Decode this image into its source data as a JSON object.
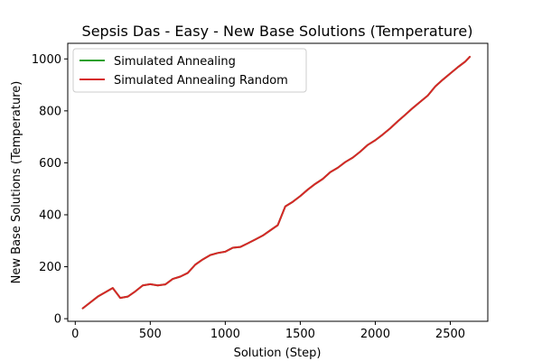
{
  "chart_data": {
    "type": "line",
    "title": "Sepsis Das - Easy - New Base Solutions (Temperature)",
    "xlabel": "Solution (Step)",
    "ylabel": "New Base Solutions (Temperature)",
    "xlim": [
      -50,
      2750
    ],
    "ylim": [
      -10,
      1060
    ],
    "xticks": [
      0,
      500,
      1000,
      1500,
      2000,
      2500
    ],
    "yticks": [
      0,
      200,
      400,
      600,
      800,
      1000
    ],
    "grid": false,
    "legend_position": "top-left",
    "series": [
      {
        "name": "Simulated Annealing",
        "color": "#2ca02c",
        "x": [
          50,
          150,
          250,
          300,
          350,
          400,
          450,
          500,
          550,
          600,
          650,
          700,
          750,
          800,
          850,
          900,
          950,
          1000,
          1050,
          1100,
          1150,
          1200,
          1250,
          1300,
          1350,
          1400,
          1450,
          1500,
          1550,
          1600,
          1650,
          1700,
          1750,
          1800,
          1850,
          1900,
          1950,
          2000,
          2050,
          2100,
          2150,
          2200,
          2250,
          2300,
          2350,
          2400,
          2450,
          2500,
          2550,
          2600,
          2630
        ],
        "y": [
          40,
          85,
          118,
          80,
          85,
          105,
          128,
          133,
          128,
          132,
          153,
          162,
          176,
          208,
          228,
          245,
          253,
          258,
          273,
          276,
          290,
          305,
          320,
          340,
          360,
          432,
          450,
          472,
          497,
          519,
          538,
          564,
          581,
          603,
          620,
          643,
          669,
          687,
          709,
          733,
          760,
          785,
          811,
          835,
          859,
          894,
          920,
          944,
          968,
          990,
          1008
        ]
      },
      {
        "name": "Simulated Annealing Random",
        "color": "#d62728",
        "x": [
          50,
          150,
          250,
          300,
          350,
          400,
          450,
          500,
          550,
          600,
          650,
          700,
          750,
          800,
          850,
          900,
          950,
          1000,
          1050,
          1100,
          1150,
          1200,
          1250,
          1300,
          1350,
          1400,
          1450,
          1500,
          1550,
          1600,
          1650,
          1700,
          1750,
          1800,
          1850,
          1900,
          1950,
          2000,
          2050,
          2100,
          2150,
          2200,
          2250,
          2300,
          2350,
          2400,
          2450,
          2500,
          2550,
          2600,
          2630
        ],
        "y": [
          40,
          85,
          118,
          80,
          85,
          105,
          128,
          133,
          128,
          132,
          153,
          162,
          176,
          208,
          228,
          245,
          253,
          258,
          273,
          276,
          290,
          305,
          320,
          340,
          360,
          432,
          450,
          472,
          497,
          519,
          538,
          564,
          581,
          603,
          620,
          643,
          669,
          687,
          709,
          733,
          760,
          785,
          811,
          835,
          859,
          894,
          920,
          944,
          968,
          990,
          1008
        ]
      }
    ]
  }
}
